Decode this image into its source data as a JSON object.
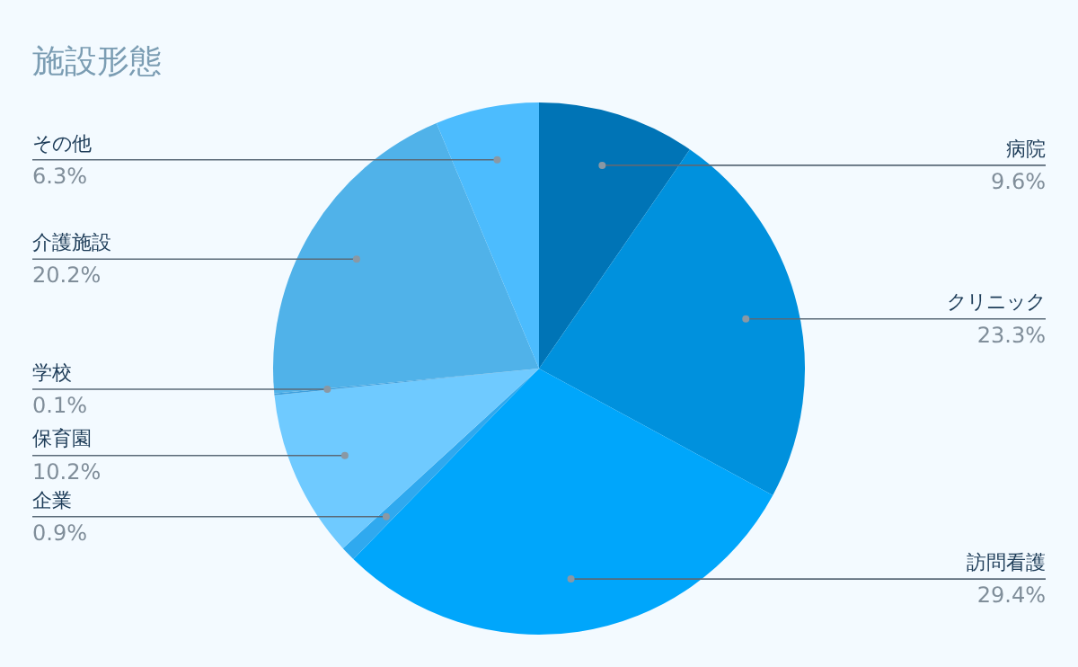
{
  "chart_data": {
    "type": "pie",
    "title": "施設形態",
    "categories": [
      "病院",
      "クリニック",
      "訪問看護",
      "企業",
      "保育園",
      "学校",
      "介護施設",
      "その他"
    ],
    "values": [
      9.6,
      23.3,
      29.4,
      0.9,
      10.2,
      0.1,
      20.2,
      6.3
    ],
    "colors": [
      "#0074b6",
      "#0091dd",
      "#00a6fb",
      "#2fa9ef",
      "#6fcaff",
      "#3fa0dd",
      "#50b2e9",
      "#4cbcfe"
    ],
    "value_labels": [
      "9.6%",
      "23.3%",
      "29.4%",
      "0.9%",
      "10.2%",
      "0.1%",
      "20.2%",
      "6.3%"
    ],
    "legend": false
  }
}
